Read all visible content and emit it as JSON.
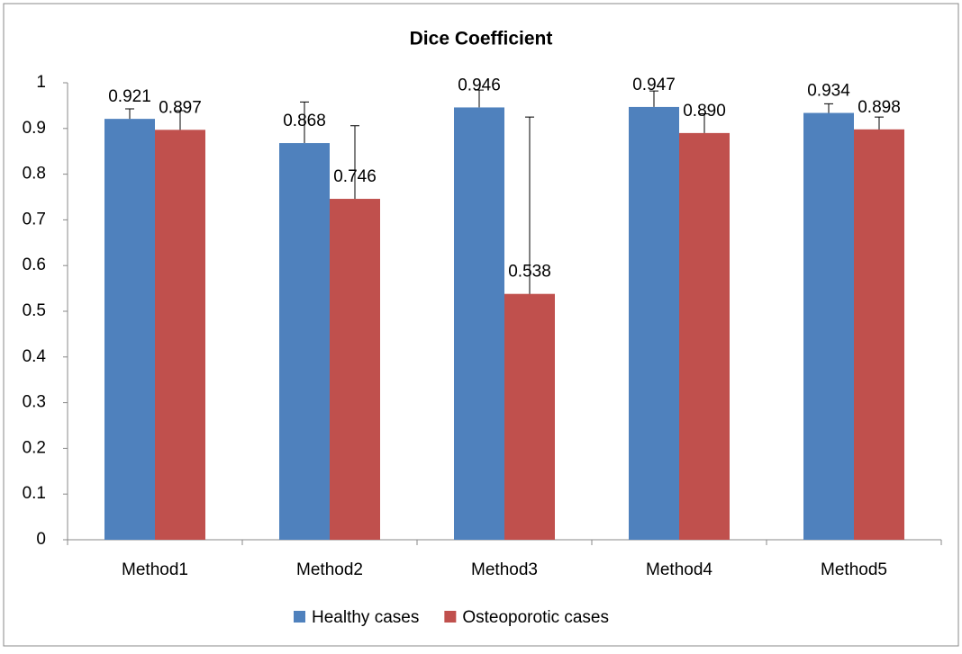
{
  "chart_data": {
    "type": "bar",
    "title": "Dice Coefficient",
    "categories": [
      "Method1",
      "Method2",
      "Method3",
      "Method4",
      "Method5"
    ],
    "series": [
      {
        "name": "Healthy cases",
        "color": "#4f81bd",
        "values": [
          0.921,
          0.868,
          0.946,
          0.947,
          0.934
        ],
        "errors": [
          0.022,
          0.09,
          0.038,
          0.035,
          0.02
        ]
      },
      {
        "name": "Osteoporotic cases",
        "color": "#c0504d",
        "values": [
          0.897,
          0.746,
          0.538,
          0.89,
          0.898
        ],
        "value_labels": [
          "0.897",
          "0.746",
          "0.538",
          "0.890",
          "0.898"
        ],
        "errors": [
          0.042,
          0.16,
          0.387,
          0.042,
          0.027
        ]
      }
    ],
    "ylim": [
      0,
      1
    ],
    "yticks": [
      0,
      0.1,
      0.2,
      0.3,
      0.4,
      0.5,
      0.6,
      0.7,
      0.8,
      0.9,
      1
    ],
    "grid": false,
    "legend": "bottom"
  }
}
